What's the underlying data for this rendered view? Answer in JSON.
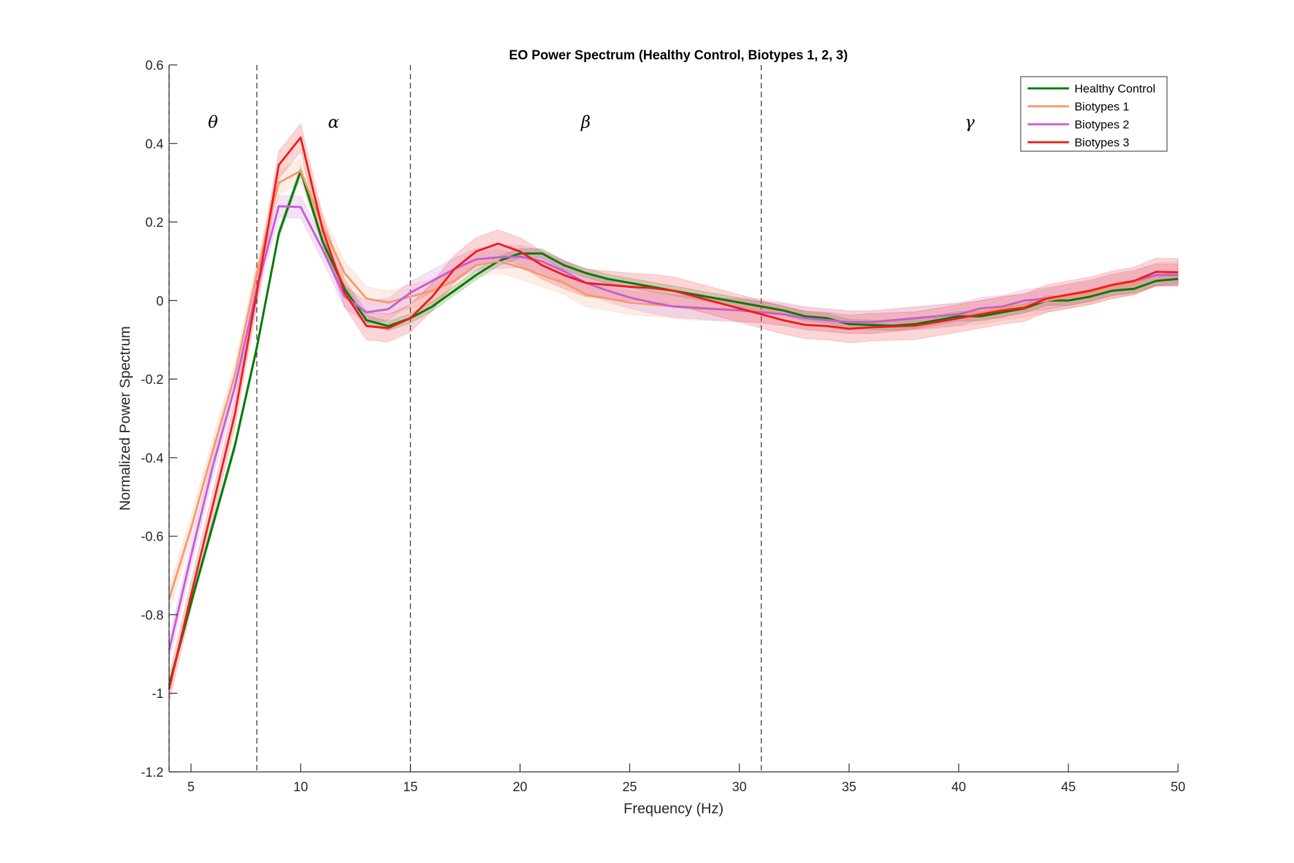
{
  "chart_data": {
    "type": "line",
    "title": "EO Power Spectrum (Healthy Control, Biotypes 1, 2, 3)",
    "xlabel": "Frequency (Hz)",
    "ylabel": "Normalized Power Spectrum",
    "xlim": [
      4,
      50
    ],
    "ylim": [
      -1.2,
      0.6
    ],
    "xticks": [
      5,
      10,
      15,
      20,
      25,
      30,
      35,
      40,
      45,
      50
    ],
    "yticks": [
      -1.2,
      -1,
      -0.8,
      -0.6,
      -0.4,
      -0.2,
      0,
      0.2,
      0.4,
      0.6
    ],
    "ytick_labels": [
      "-1.2",
      "-1",
      "-0.8",
      "-0.6",
      "-0.4",
      "-0.2",
      "0",
      "0.2",
      "0.4",
      "0.6"
    ],
    "grid": false,
    "legend_position": "top-right",
    "band_boundaries": [
      4,
      8,
      15,
      31
    ],
    "bands": [
      {
        "label": "θ",
        "x": 6
      },
      {
        "label": "α",
        "x": 11.5
      },
      {
        "label": "β",
        "x": 23
      },
      {
        "label": "γ",
        "x": 40.5
      }
    ],
    "band_label_y": 0.44,
    "x": [
      4,
      5,
      6,
      7,
      8,
      9,
      10,
      11,
      12,
      13,
      14,
      15,
      16,
      17,
      18,
      19,
      20,
      21,
      22,
      23,
      24,
      25,
      26,
      27,
      28,
      29,
      30,
      31,
      32,
      33,
      34,
      35,
      36,
      37,
      38,
      39,
      40,
      41,
      42,
      43,
      44,
      45,
      46,
      47,
      48,
      49,
      50
    ],
    "series": [
      {
        "name": "Healthy Control",
        "color": "#007a00",
        "band_width": 0.012,
        "values": [
          -0.98,
          -0.77,
          -0.57,
          -0.37,
          -0.12,
          0.17,
          0.33,
          0.15,
          0.03,
          -0.05,
          -0.065,
          -0.045,
          -0.015,
          0.025,
          0.065,
          0.1,
          0.12,
          0.12,
          0.09,
          0.07,
          0.055,
          0.045,
          0.035,
          0.025,
          0.015,
          0.005,
          -0.005,
          -0.015,
          -0.025,
          -0.04,
          -0.045,
          -0.06,
          -0.062,
          -0.064,
          -0.06,
          -0.05,
          -0.04,
          -0.04,
          -0.03,
          -0.02,
          0.0,
          0.0,
          0.01,
          0.025,
          0.03,
          0.05,
          0.055
        ]
      },
      {
        "name": "Biotypes 1",
        "color": "#f59a6e",
        "band_width": 0.03,
        "values": [
          -0.76,
          -0.58,
          -0.38,
          -0.19,
          0.07,
          0.3,
          0.33,
          0.19,
          0.07,
          0.005,
          -0.005,
          0.01,
          0.025,
          0.05,
          0.09,
          0.1,
          0.085,
          0.065,
          0.045,
          0.015,
          0.005,
          -0.005,
          -0.01,
          -0.015,
          -0.02,
          -0.022,
          -0.024,
          -0.025,
          -0.035,
          -0.045,
          -0.05,
          -0.055,
          -0.055,
          -0.05,
          -0.045,
          -0.04,
          -0.035,
          -0.03,
          -0.02,
          -0.012,
          0.0,
          0.01,
          0.02,
          0.035,
          0.045,
          0.065,
          0.07
        ]
      },
      {
        "name": "Biotypes 2",
        "color": "#c45ed4",
        "band_width": 0.028,
        "values": [
          -0.89,
          -0.65,
          -0.42,
          -0.22,
          0.03,
          0.24,
          0.238,
          0.13,
          0.01,
          -0.03,
          -0.022,
          0.02,
          0.05,
          0.08,
          0.105,
          0.11,
          0.112,
          0.1,
          0.075,
          0.045,
          0.025,
          0.008,
          -0.005,
          -0.015,
          -0.018,
          -0.022,
          -0.025,
          -0.03,
          -0.035,
          -0.045,
          -0.05,
          -0.055,
          -0.055,
          -0.05,
          -0.045,
          -0.04,
          -0.035,
          -0.02,
          -0.015,
          0.0,
          0.005,
          0.015,
          0.025,
          0.04,
          0.05,
          0.065,
          0.065
        ]
      },
      {
        "name": "Biotypes 3",
        "color": "#ef1c1c",
        "band_width": 0.035,
        "values": [
          -0.99,
          -0.75,
          -0.52,
          -0.29,
          0.02,
          0.345,
          0.415,
          0.18,
          0.02,
          -0.065,
          -0.07,
          -0.045,
          0.01,
          0.08,
          0.125,
          0.145,
          0.125,
          0.09,
          0.065,
          0.045,
          0.04,
          0.035,
          0.032,
          0.025,
          0.01,
          -0.005,
          -0.02,
          -0.035,
          -0.05,
          -0.062,
          -0.065,
          -0.072,
          -0.068,
          -0.066,
          -0.064,
          -0.055,
          -0.045,
          -0.035,
          -0.025,
          -0.018,
          0.005,
          0.015,
          0.025,
          0.04,
          0.05,
          0.073,
          0.072
        ]
      }
    ]
  }
}
